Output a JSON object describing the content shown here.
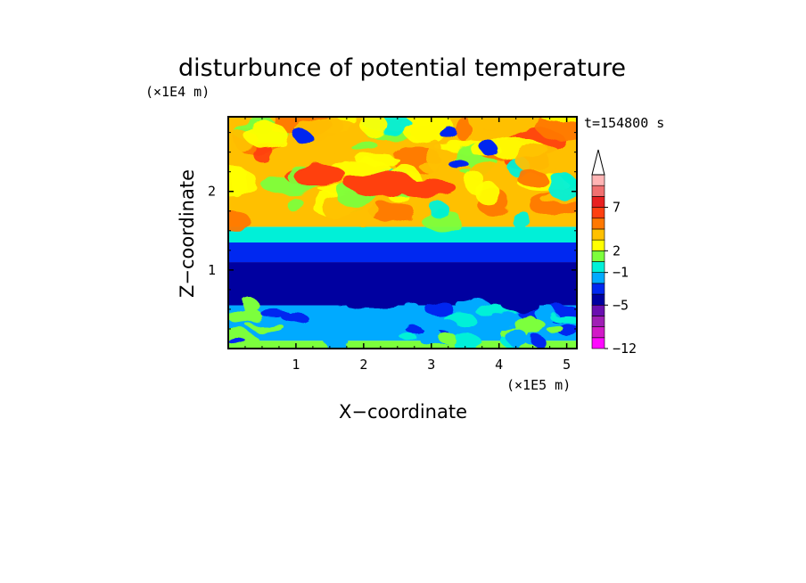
{
  "chart_data": {
    "type": "heatmap",
    "title": "disturbunce of potential temperature",
    "xlabel": "X−coordinate",
    "ylabel": "Z−coordinate",
    "x_unit": "(×1E5 m)",
    "y_unit": "(×1E4 m)",
    "time_label": "t=154800 s",
    "xlim": [
      0,
      5.15
    ],
    "ylim": [
      0,
      2.95
    ],
    "x_ticks": [
      1,
      2,
      3,
      4,
      5
    ],
    "y_ticks": [
      1,
      2
    ],
    "x_tick_labels": [
      "1",
      "2",
      "3",
      "4",
      "5"
    ],
    "y_tick_labels": [
      "1",
      "2"
    ],
    "colorbar": {
      "colors": [
        "#ff0aff",
        "#d11ac7",
        "#a01fb5",
        "#6a0fb0",
        "#0000a0",
        "#0028f0",
        "#00aaff",
        "#00f0d8",
        "#7cff3c",
        "#ffff00",
        "#ffc000",
        "#ff7800",
        "#ff4010",
        "#e82020",
        "#f07070",
        "#ffb4b4"
      ],
      "extend_top_color": "#ffffff",
      "tick_labels": [
        "−12",
        "−5",
        "−1",
        "2",
        "7"
      ],
      "tick_values": [
        -12,
        -5,
        -1,
        2,
        7
      ]
    },
    "bands": [
      {
        "z": [
          0.0,
          0.1
        ],
        "level": "green",
        "color": "#7cff3c"
      },
      {
        "z": [
          0.1,
          0.55
        ],
        "level": "cyan/light-blue",
        "color": "#00aaff"
      },
      {
        "z": [
          0.55,
          1.1
        ],
        "level": "dark blue",
        "color": "#0000a0"
      },
      {
        "z": [
          1.1,
          1.35
        ],
        "level": "blue",
        "color": "#0028f0"
      },
      {
        "z": [
          1.35,
          1.55
        ],
        "level": "cyan/green",
        "color": "#00f0d8"
      },
      {
        "z": [
          1.55,
          2.95
        ],
        "level": "yellow/orange",
        "color": "#ffc000"
      }
    ]
  }
}
